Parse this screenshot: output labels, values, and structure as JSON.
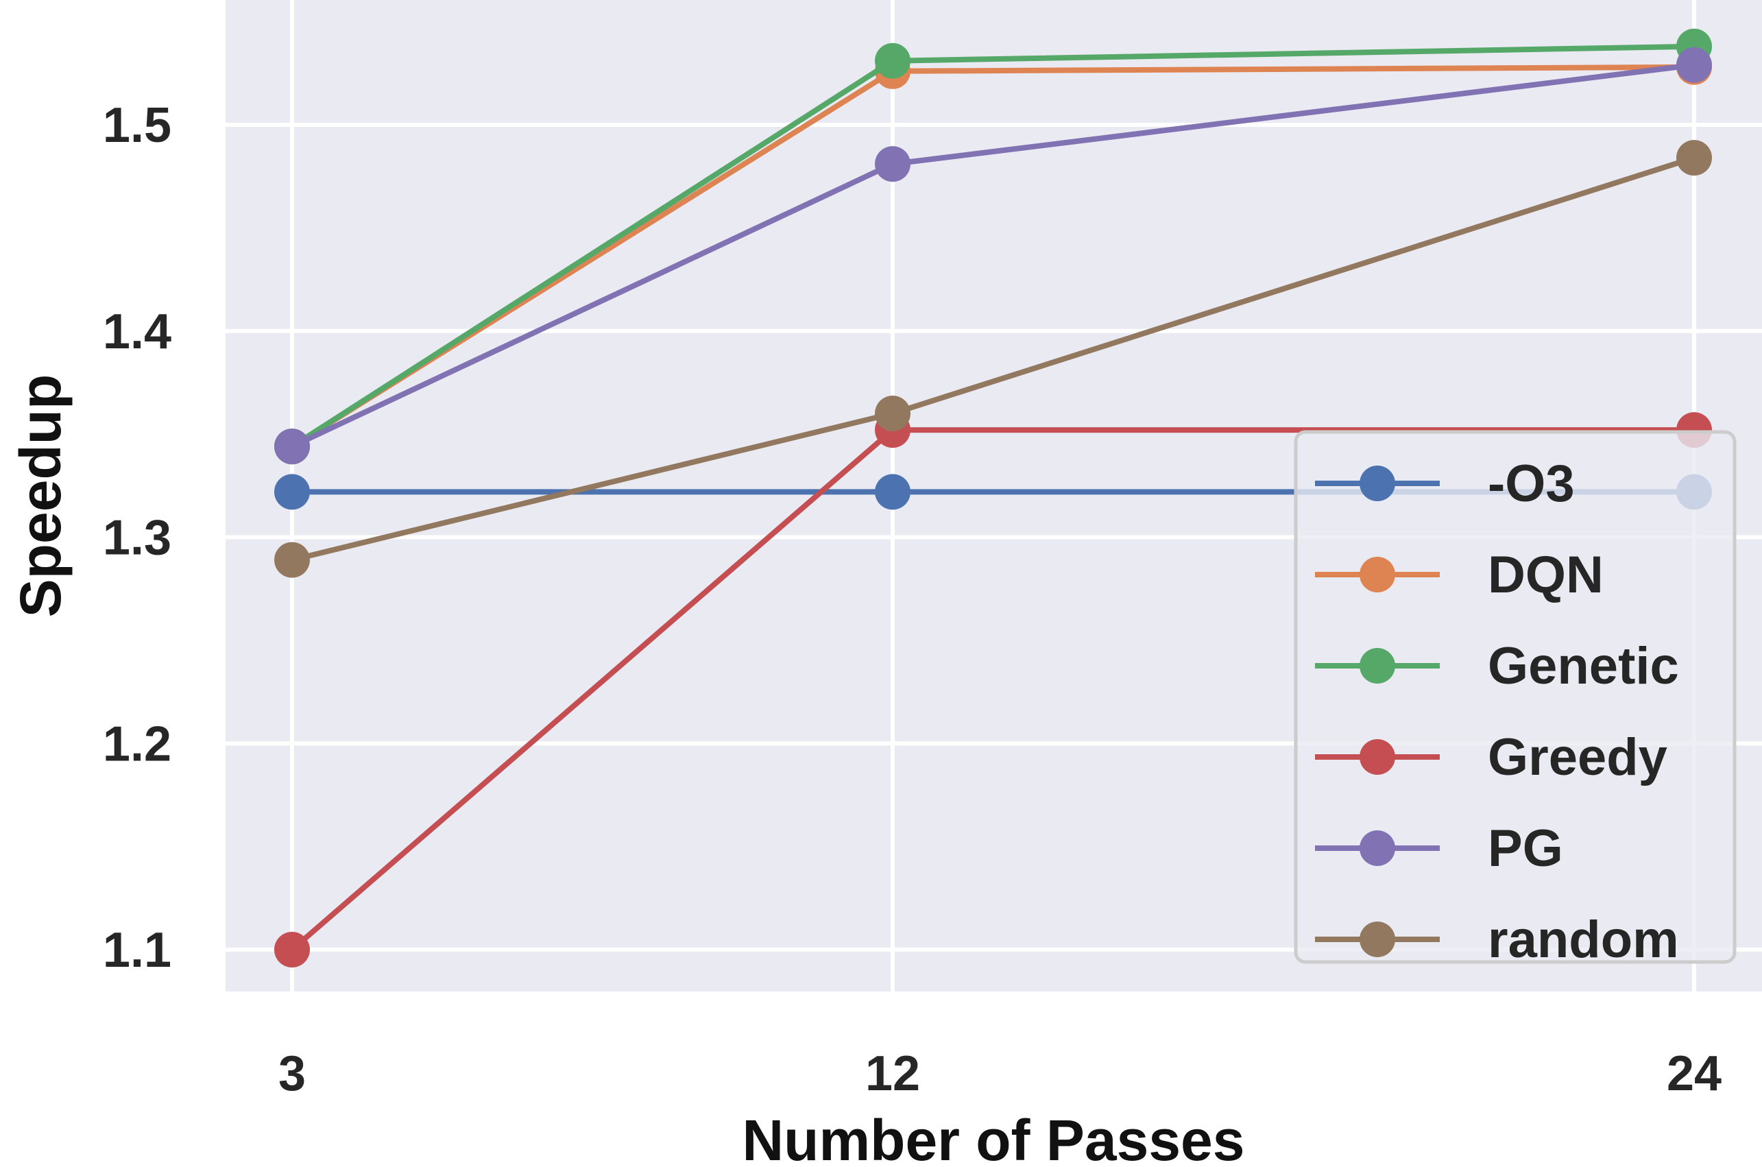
{
  "chart_data": {
    "type": "line",
    "title": "",
    "xlabel": "Number of Passes",
    "ylabel": "Speedup",
    "categories": [
      "3",
      "12",
      "24"
    ],
    "ylim": [
      1.08,
      1.56
    ],
    "yticks": [
      "1.1",
      "1.2",
      "1.3",
      "1.4",
      "1.5"
    ],
    "grid": true,
    "legend_position": "lower-right",
    "series": [
      {
        "name": "-O3",
        "color": "#4c72b0",
        "values": [
          1.322,
          1.322,
          1.322
        ]
      },
      {
        "name": "DQN",
        "color": "#dd8452",
        "values": [
          1.344,
          1.526,
          1.528
        ]
      },
      {
        "name": "Genetic",
        "color": "#55a868",
        "values": [
          1.344,
          1.531,
          1.538
        ]
      },
      {
        "name": "Greedy",
        "color": "#c44e52",
        "values": [
          1.1,
          1.352,
          1.352
        ]
      },
      {
        "name": "PG",
        "color": "#8172b3",
        "values": [
          1.344,
          1.481,
          1.529
        ]
      },
      {
        "name": "random",
        "color": "#937860",
        "values": [
          1.289,
          1.36,
          1.484
        ]
      }
    ]
  }
}
